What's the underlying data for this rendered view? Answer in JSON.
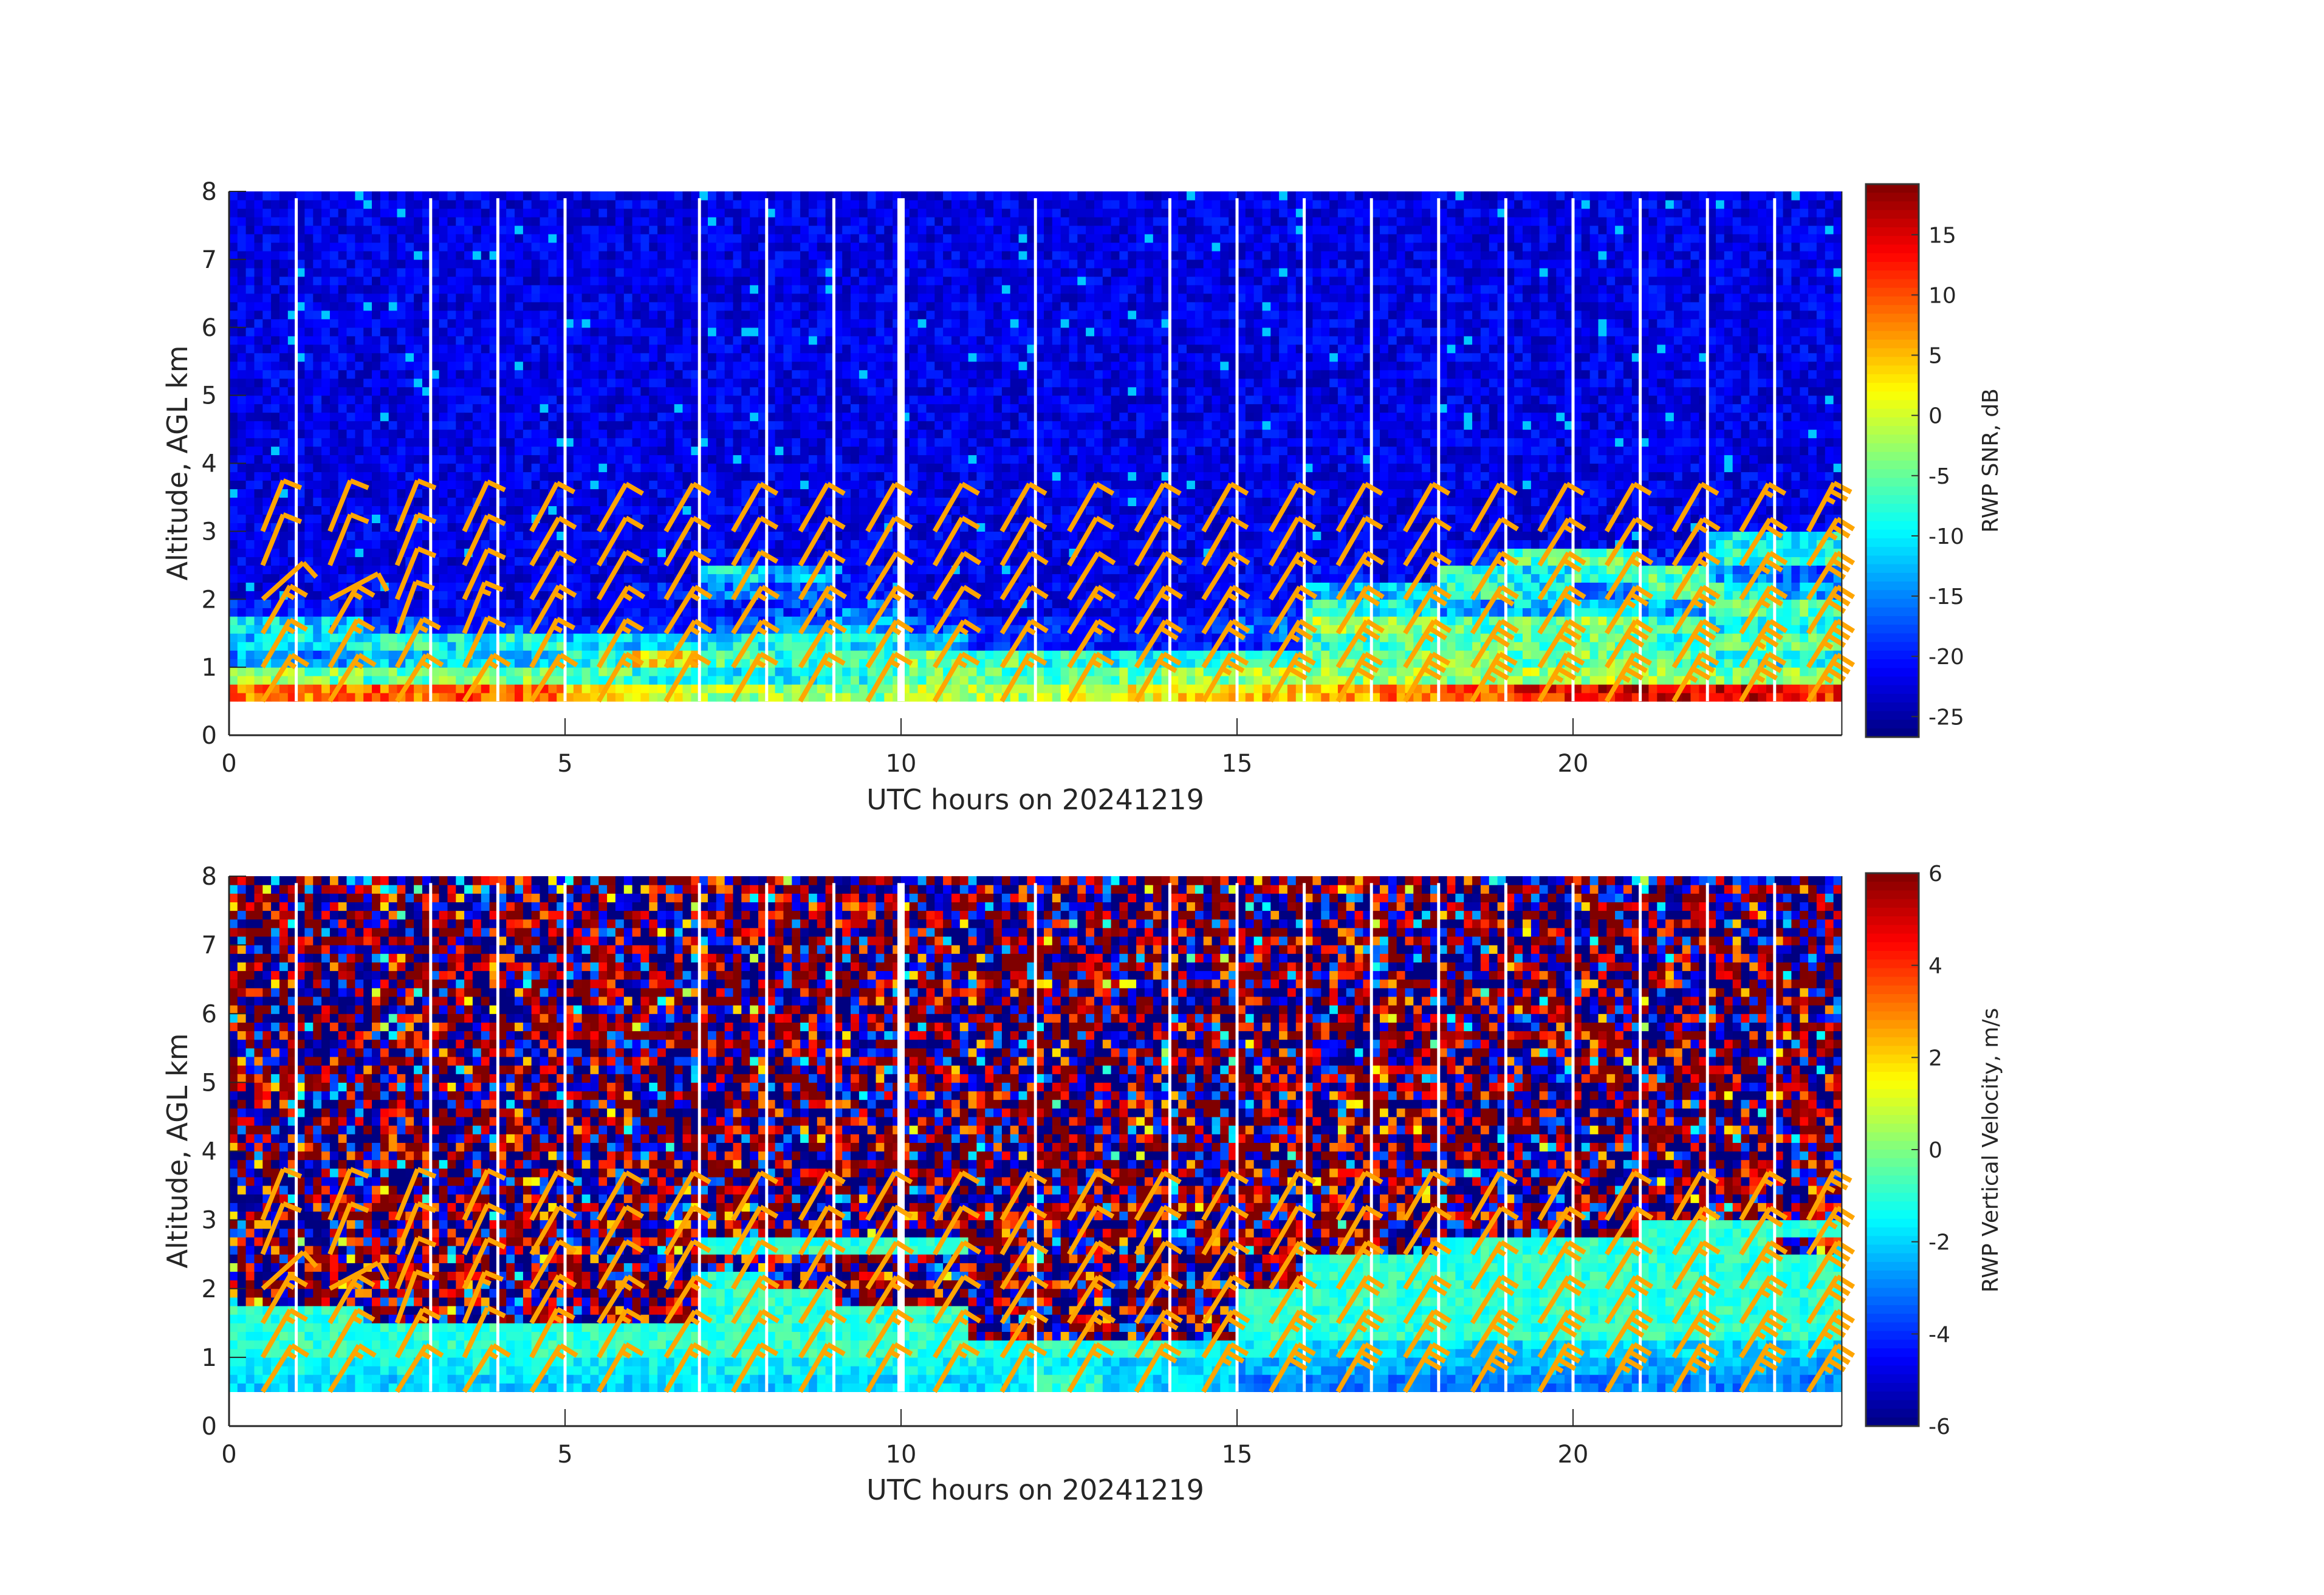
{
  "chart_data": [
    {
      "type": "heatmap",
      "xlabel": "UTC hours on 20241219",
      "ylabel": "Altitude, AGL km",
      "xlim": [
        0,
        24
      ],
      "ylim": [
        0,
        8
      ],
      "xticks": [
        "0",
        "5",
        "10",
        "15",
        "20"
      ],
      "yticks": [
        "0",
        "1",
        "2",
        "3",
        "4",
        "5",
        "6",
        "7",
        "8"
      ],
      "colormap": "jet",
      "colorbar": {
        "label": "RWP SNR, dB",
        "clim": [
          -26.7,
          19.2
        ],
        "ticks": [
          "15",
          "10",
          "5",
          "0",
          "-5",
          "-10",
          "-15",
          "-20",
          "-25"
        ]
      },
      "data_top_km": 7.9,
      "hours": [
        0,
        1,
        2,
        3,
        4,
        5,
        6,
        7,
        8,
        9,
        10,
        11,
        12,
        13,
        14,
        15,
        16,
        17,
        18,
        19,
        20,
        21,
        22,
        23
      ],
      "rows": [
        {
          "alt_km": 0.5,
          "values": [
            8,
            8,
            9,
            10,
            9,
            3,
            0,
            -2,
            -3,
            -4,
            0,
            -2,
            0,
            2,
            3,
            4,
            6,
            8,
            10,
            13,
            15,
            15,
            16,
            12
          ]
        },
        {
          "alt_km": 0.75,
          "values": [
            -3,
            -4,
            -6,
            -2,
            -4,
            -6,
            -8,
            -10,
            -10,
            -8,
            -5,
            -6,
            -5,
            -5,
            -3,
            -2,
            -3,
            -2,
            -3,
            -2,
            -2,
            -3,
            -4,
            -4
          ]
        },
        {
          "alt_km": 1.0,
          "values": [
            -14,
            -15,
            -12,
            -10,
            -12,
            -8,
            3,
            -6,
            -8,
            -7,
            -4,
            -6,
            -8,
            -10,
            -10,
            -8,
            -5,
            -4,
            -3,
            -6,
            -4,
            -6,
            -8,
            -10
          ]
        },
        {
          "alt_km": 1.25,
          "values": [
            -12,
            -10,
            -8,
            -10,
            -8,
            -12,
            -12,
            -10,
            -8,
            -10,
            -12,
            -20,
            -20,
            -20,
            -20,
            -18,
            -8,
            -6,
            -5,
            -6,
            -5,
            -8,
            -5,
            -6
          ]
        },
        {
          "alt_km": 1.5,
          "values": [
            -10,
            -12,
            -18,
            -20,
            -20,
            -20,
            -20,
            -18,
            -16,
            -14,
            -18,
            -20,
            -20,
            -20,
            -20,
            -16,
            -2,
            -3,
            -6,
            -4,
            -3,
            -8,
            -10,
            -8
          ]
        },
        {
          "alt_km": 1.75,
          "values": [
            -20,
            -20,
            -22,
            -22,
            -22,
            -22,
            -22,
            -20,
            -18,
            -16,
            -20,
            -22,
            -22,
            -22,
            -22,
            -20,
            -8,
            -10,
            -14,
            -12,
            -10,
            -14,
            -4,
            -6
          ]
        },
        {
          "alt_km": 2.0,
          "values": [
            -22,
            -22,
            -22,
            -22,
            -22,
            -22,
            -20,
            -16,
            -18,
            -20,
            -22,
            -22,
            -22,
            -22,
            -22,
            -22,
            -14,
            -12,
            -8,
            -10,
            -16,
            -6,
            -8,
            -14
          ]
        },
        {
          "alt_km": 2.25,
          "values": [
            -22,
            -22,
            -22,
            -22,
            -22,
            -22,
            -22,
            -10,
            -14,
            -20,
            -22,
            -22,
            -22,
            -22,
            -22,
            -22,
            -20,
            -22,
            -8,
            -10,
            -6,
            -6,
            -14,
            -18
          ]
        },
        {
          "alt_km": 2.5,
          "values": [
            -22,
            -22,
            -22,
            -22,
            -22,
            -22,
            -22,
            -20,
            -22,
            -22,
            -22,
            -22,
            -22,
            -22,
            -22,
            -22,
            -22,
            -22,
            -20,
            -6,
            -6,
            -20,
            -8,
            -8
          ]
        },
        {
          "alt_km": 2.75,
          "values": [
            -22,
            -22,
            -22,
            -22,
            -22,
            -22,
            -22,
            -22,
            -22,
            -22,
            -22,
            -22,
            -22,
            -22,
            -22,
            -22,
            -22,
            -22,
            -22,
            -22,
            -22,
            -22,
            -10,
            -10
          ]
        },
        {
          "alt_km": 3.0,
          "values": [
            -22,
            -22,
            -22,
            -22,
            -22,
            -22,
            -22,
            -22,
            -22,
            -22,
            -22,
            -22,
            -22,
            -22,
            -22,
            -22,
            -22,
            -22,
            -22,
            -22,
            -22,
            -22,
            -22,
            -22
          ]
        }
      ],
      "above_value": -22
    },
    {
      "type": "heatmap",
      "xlabel": "UTC hours on 20241219",
      "ylabel": "Altitude, AGL km",
      "xlim": [
        0,
        24
      ],
      "ylim": [
        0,
        8
      ],
      "xticks": [
        "0",
        "5",
        "10",
        "15",
        "20"
      ],
      "yticks": [
        "0",
        "1",
        "2",
        "3",
        "4",
        "5",
        "6",
        "7",
        "8"
      ],
      "colormap": "jet",
      "colorbar": {
        "label": "RWP Vertical Velocity, m/s",
        "clim": [
          -6,
          6
        ],
        "ticks": [
          "6",
          "4",
          "2",
          "0",
          "-2",
          "-4",
          "-6"
        ]
      },
      "data_top_km": 7.9,
      "hours": [
        0,
        1,
        2,
        3,
        4,
        5,
        6,
        7,
        8,
        9,
        10,
        11,
        12,
        13,
        14,
        15,
        16,
        17,
        18,
        19,
        20,
        21,
        22,
        23
      ],
      "rows": [
        {
          "alt_km": 0.5,
          "values": [
            -2,
            -2,
            -2,
            -2,
            -2,
            -2,
            -2,
            -2,
            -2,
            -2,
            -2,
            -2,
            -1,
            -2,
            -2,
            -3,
            -3,
            -3,
            -3,
            -3,
            -3,
            -3,
            -3,
            -3
          ]
        },
        {
          "alt_km": 0.75,
          "values": [
            -1.5,
            -1.5,
            -1.5,
            -1.5,
            -1.5,
            -1.5,
            -1.5,
            -1.5,
            -1.5,
            -1.5,
            -1.5,
            -1.5,
            -1.5,
            -2,
            -2,
            -2.5,
            -2.5,
            -2.5,
            -2.5,
            -2.5,
            -2.5,
            -2.5,
            -2.5,
            -2.5
          ]
        },
        {
          "alt_km": 1.0,
          "values": [
            -1,
            -1,
            -1,
            -1,
            -1,
            -1,
            -1,
            -1,
            -1,
            -1,
            -1,
            -1,
            -1,
            -1,
            -1.5,
            -1.5,
            -2,
            -2,
            -2,
            -2,
            -2,
            -2,
            -2,
            -2
          ]
        },
        {
          "alt_km": 1.25,
          "values": [
            -1,
            -1,
            -1,
            -1,
            -1,
            -1,
            -1,
            -1,
            -1,
            -1,
            -1,
            null,
            null,
            null,
            null,
            -1,
            -1,
            -1,
            -1,
            -1,
            -1,
            -1,
            -1,
            -1
          ]
        },
        {
          "alt_km": 1.5,
          "values": [
            -1,
            -1,
            null,
            null,
            null,
            null,
            null,
            -1,
            -1,
            -1,
            -1,
            null,
            null,
            null,
            null,
            -1,
            -1,
            -1,
            -1,
            -1,
            -1,
            -1,
            -1,
            -1
          ]
        },
        {
          "alt_km": 1.75,
          "values": [
            null,
            null,
            null,
            null,
            null,
            null,
            null,
            -1,
            -1,
            null,
            null,
            null,
            null,
            null,
            null,
            -1,
            -1,
            -1,
            -1,
            -1,
            -1,
            -1,
            -1,
            -1
          ]
        },
        {
          "alt_km": 2.0,
          "values": [
            null,
            null,
            null,
            null,
            null,
            null,
            null,
            -1,
            null,
            null,
            null,
            null,
            null,
            null,
            null,
            null,
            -1,
            -1,
            -1,
            -1,
            -1,
            -1,
            -1,
            -1
          ]
        },
        {
          "alt_km": 2.25,
          "values": [
            null,
            null,
            null,
            null,
            null,
            null,
            null,
            null,
            null,
            null,
            null,
            null,
            null,
            null,
            null,
            null,
            -1,
            -1,
            -1,
            -1,
            -1,
            -1,
            -1,
            -1
          ]
        },
        {
          "alt_km": 2.5,
          "values": [
            null,
            null,
            null,
            null,
            null,
            null,
            null,
            -1,
            -1,
            -1,
            -1,
            null,
            null,
            null,
            null,
            null,
            null,
            null,
            -1,
            -1,
            -1,
            -1,
            -1,
            null
          ]
        },
        {
          "alt_km": 2.75,
          "values": [
            null,
            null,
            null,
            null,
            null,
            null,
            null,
            null,
            null,
            null,
            null,
            null,
            null,
            null,
            null,
            null,
            null,
            null,
            null,
            null,
            null,
            -1,
            -1,
            -1
          ]
        },
        {
          "alt_km": 3.0,
          "values": [
            null,
            null,
            null,
            null,
            null,
            null,
            null,
            null,
            null,
            null,
            null,
            null,
            null,
            null,
            null,
            null,
            null,
            null,
            null,
            null,
            null,
            null,
            null,
            null
          ]
        }
      ],
      "above_value": null
    }
  ],
  "data_gap_hours": [
    1,
    3,
    4,
    5,
    7,
    8,
    9,
    10,
    12,
    14,
    15,
    16,
    17,
    18,
    19,
    20,
    21,
    22,
    23
  ],
  "wind_barbs": {
    "color": "#FFA500",
    "hours": [
      0.5,
      1.5,
      2.5,
      3.5,
      4.5,
      5.5,
      6.5,
      7.5,
      8.5,
      9.5,
      10.5,
      11.5,
      12.5,
      13.5,
      14.5,
      15.5,
      16.5,
      17.5,
      18.5,
      19.5,
      20.5,
      21.5,
      22.5,
      23.5
    ],
    "levels": [
      {
        "alt_km": 0.5,
        "speed_kt": [
          15,
          15,
          15,
          15,
          15,
          15,
          15,
          15,
          15,
          15,
          15,
          15,
          15,
          20,
          25,
          30,
          30,
          30,
          35,
          35,
          35,
          35,
          35,
          35
        ],
        "dir_deg": [
          32,
          32,
          32,
          32,
          32,
          30,
          30,
          30,
          30,
          30,
          30,
          30,
          30,
          30,
          30,
          30,
          30,
          30,
          30,
          30,
          30,
          30,
          30,
          32
        ]
      },
      {
        "alt_km": 1.0,
        "speed_kt": [
          15,
          15,
          15,
          10,
          15,
          15,
          15,
          15,
          15,
          15,
          15,
          15,
          15,
          20,
          20,
          25,
          25,
          25,
          30,
          30,
          30,
          30,
          35,
          35
        ],
        "dir_deg": [
          30,
          30,
          28,
          25,
          28,
          30,
          32,
          32,
          32,
          32,
          32,
          32,
          32,
          32,
          32,
          32,
          32,
          32,
          32,
          32,
          32,
          32,
          32,
          32
        ]
      },
      {
        "alt_km": 1.5,
        "speed_kt": [
          15,
          15,
          10,
          15,
          15,
          15,
          15,
          15,
          15,
          15,
          10,
          10,
          15,
          15,
          15,
          15,
          20,
          20,
          20,
          20,
          25,
          25,
          25,
          30
        ],
        "dir_deg": [
          30,
          30,
          20,
          22,
          30,
          32,
          32,
          32,
          32,
          32,
          32,
          32,
          32,
          32,
          32,
          32,
          32,
          32,
          32,
          32,
          32,
          32,
          32,
          32
        ]
      },
      {
        "alt_km": 2.0,
        "speed_kt": [
          10,
          10,
          10,
          10,
          10,
          10,
          10,
          10,
          10,
          10,
          10,
          10,
          10,
          10,
          15,
          15,
          15,
          15,
          15,
          20,
          15,
          15,
          25,
          30
        ],
        "dir_deg": [
          48,
          62,
          22,
          25,
          30,
          30,
          30,
          30,
          30,
          32,
          32,
          32,
          32,
          32,
          32,
          32,
          32,
          32,
          32,
          32,
          32,
          32,
          32,
          32
        ]
      },
      {
        "alt_km": 2.5,
        "speed_kt": [
          10,
          10,
          10,
          10,
          10,
          10,
          10,
          10,
          10,
          10,
          10,
          10,
          10,
          10,
          10,
          10,
          10,
          10,
          10,
          15,
          10,
          15,
          20,
          25
        ],
        "dir_deg": [
          22,
          22,
          22,
          25,
          30,
          30,
          30,
          30,
          30,
          30,
          30,
          30,
          30,
          30,
          30,
          30,
          30,
          32,
          32,
          32,
          32,
          32,
          32,
          32
        ]
      },
      {
        "alt_km": 3.0,
        "speed_kt": [
          10,
          10,
          10,
          10,
          10,
          10,
          10,
          10,
          10,
          10,
          10,
          10,
          10,
          10,
          10,
          10,
          10,
          10,
          10,
          10,
          10,
          10,
          15,
          25
        ],
        "dir_deg": [
          22,
          22,
          22,
          25,
          28,
          30,
          30,
          30,
          30,
          30,
          30,
          30,
          30,
          30,
          30,
          30,
          30,
          30,
          30,
          30,
          30,
          30,
          30,
          28
        ]
      }
    ]
  }
}
